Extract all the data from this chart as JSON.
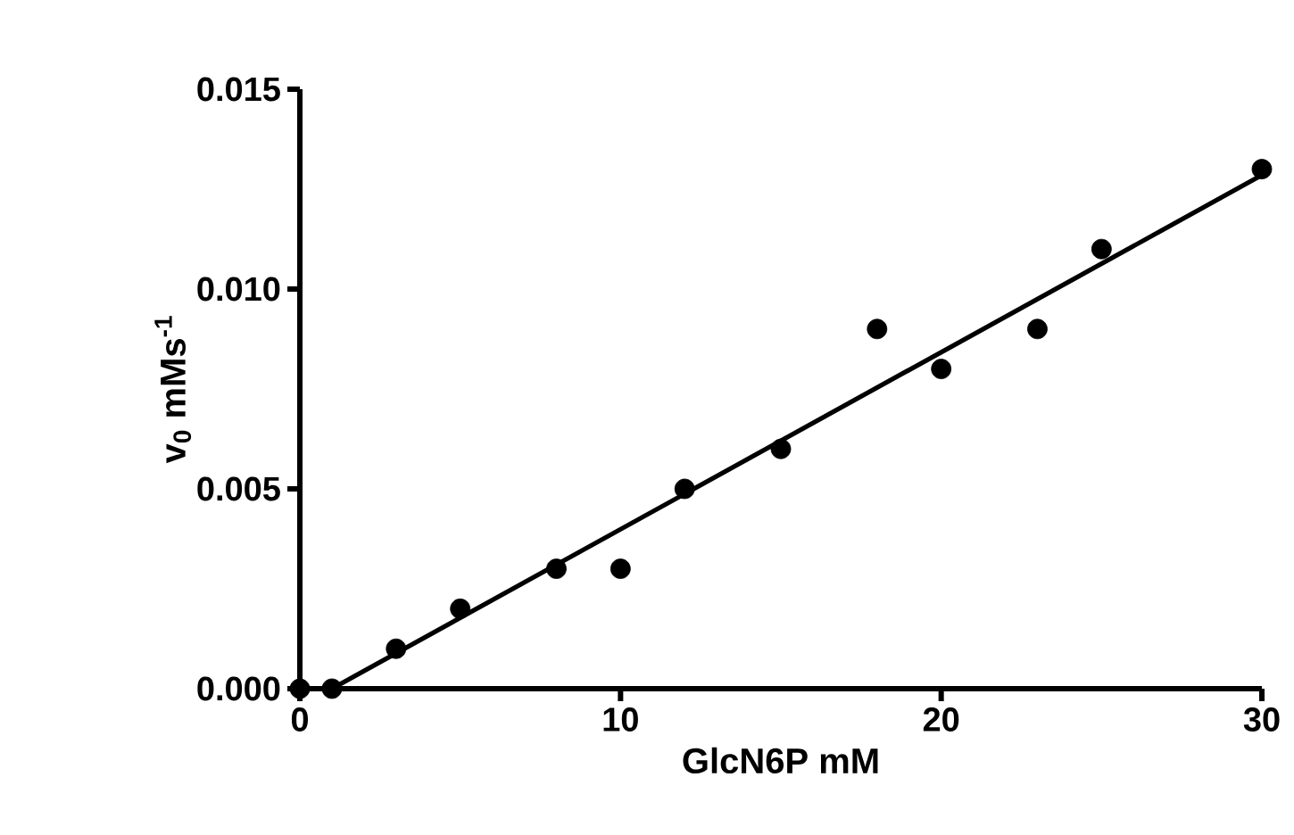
{
  "chart_data": {
    "type": "scatter",
    "xlabel": "GlcN6P mM",
    "ylabel": "v$_{0}$ mMs$^{-1}$",
    "xlim": [
      0,
      30
    ],
    "ylim": [
      0,
      0.015
    ],
    "xticks": [
      0,
      10,
      20,
      30
    ],
    "yticks": [
      {
        "value": 0,
        "label": "0.000"
      },
      {
        "value": 0.005,
        "label": "0.005"
      },
      {
        "value": 0.01,
        "label": "0.010"
      },
      {
        "value": 0.015,
        "label": "0.015"
      }
    ],
    "grid": false,
    "marker": "circle",
    "series": [
      {
        "color": "#000000",
        "x": [
          0,
          1,
          3,
          5,
          8,
          10,
          12,
          15,
          18,
          20,
          23,
          25,
          30
        ],
        "values": [
          0,
          0,
          0.001,
          0.002,
          0.003,
          0.003,
          0.005,
          0.006,
          0.009,
          0.008,
          0.009,
          0.011,
          0.013
        ]
      },
      {
        "type": "line",
        "color": "#000000",
        "marker": "none",
        "line_style": "solid",
        "x": [
          1,
          30
        ],
        "values": [
          0,
          0.01285
        ]
      }
    ]
  }
}
